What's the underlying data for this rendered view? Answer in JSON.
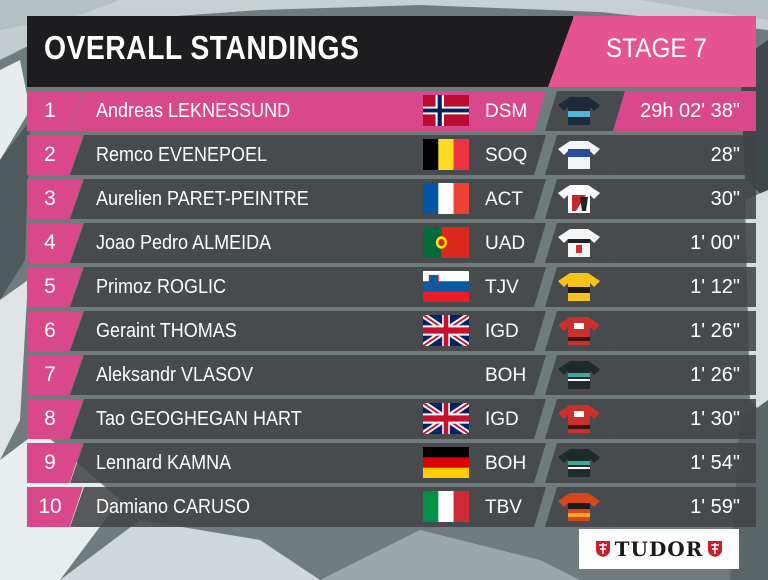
{
  "header": {
    "title": "OVERALL STANDINGS",
    "stage": "STAGE 7"
  },
  "colors": {
    "accent_pink": "#e6548f",
    "row_pink": "#d9488a",
    "row_dark": "#424447",
    "title_black": "#1d1d1f"
  },
  "standings": [
    {
      "rank": "1",
      "name": "Andreas LEKNESSUND",
      "flag": "norway-flag",
      "team": "DSM",
      "time": "29h 02' 38\"",
      "jersey": "dsm-jersey"
    },
    {
      "rank": "2",
      "name": "Remco EVENEPOEL",
      "flag": "belgium-flag",
      "team": "SOQ",
      "time": "28\"",
      "jersey": "soq-jersey"
    },
    {
      "rank": "3",
      "name": "Aurelien PARET-PEINTRE",
      "flag": "france-flag",
      "team": "ACT",
      "time": "30\"",
      "jersey": "act-jersey"
    },
    {
      "rank": "4",
      "name": "Joao Pedro ALMEIDA",
      "flag": "portugal-flag",
      "team": "UAD",
      "time": "1' 00\"",
      "jersey": "uad-jersey"
    },
    {
      "rank": "5",
      "name": "Primoz ROGLIC",
      "flag": "slovenia-flag",
      "team": "TJV",
      "time": "1' 12\"",
      "jersey": "tjv-jersey"
    },
    {
      "rank": "6",
      "name": "Geraint THOMAS",
      "flag": "uk-flag",
      "team": "IGD",
      "time": "1' 26\"",
      "jersey": "igd-jersey"
    },
    {
      "rank": "7",
      "name": "Aleksandr VLASOV",
      "flag": "",
      "team": "BOH",
      "time": "1' 26\"",
      "jersey": "boh-jersey"
    },
    {
      "rank": "8",
      "name": "Tao GEOGHEGAN HART",
      "flag": "uk-flag",
      "team": "IGD",
      "time": "1' 30\"",
      "jersey": "igd-jersey"
    },
    {
      "rank": "9",
      "name": "Lennard KAMNA",
      "flag": "germany-flag",
      "team": "BOH",
      "time": "1' 54\"",
      "jersey": "boh-jersey"
    },
    {
      "rank": "10",
      "name": "Damiano CARUSO",
      "flag": "italy-flag",
      "team": "TBV",
      "time": "1' 59\"",
      "jersey": "tbv-jersey"
    }
  ],
  "sponsor": {
    "name": "TUDOR",
    "logo_icon": "tudor-shield-icon"
  }
}
